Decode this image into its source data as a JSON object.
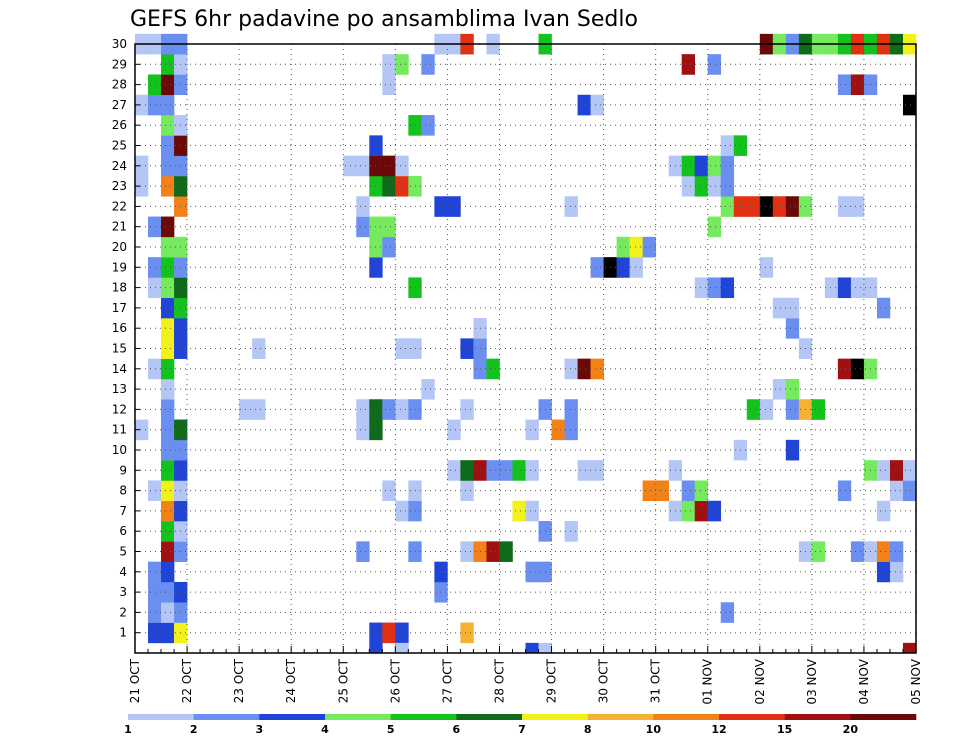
{
  "chart_data": {
    "type": "heatmap",
    "title": "GEFS 6hr padavine po ansamblima Ivan Sedlo",
    "xlabel": "",
    "ylabel": "",
    "x_ticks": [
      "21 OCT",
      "22 OCT",
      "23 OCT",
      "24 OCT",
      "25 OCT",
      "26 OCT",
      "27 OCT",
      "28 OCT",
      "29 OCT",
      "30 OCT",
      "31 OCT",
      "01 NOV",
      "02 NOV",
      "03 NOV",
      "04 NOV",
      "05 NOV"
    ],
    "y_ticks": [
      1,
      2,
      3,
      4,
      5,
      6,
      7,
      8,
      9,
      10,
      11,
      12,
      13,
      14,
      15,
      16,
      17,
      18,
      19,
      20,
      21,
      22,
      23,
      24,
      25,
      26,
      27,
      28,
      29,
      30
    ],
    "x_unit": "6-hour step (4 per day)",
    "ylim": [
      0,
      30
    ],
    "grid": true,
    "colorbar": {
      "labels": [
        "1",
        "2",
        "3",
        "4",
        "5",
        "6",
        "7",
        "8",
        "10",
        "12",
        "15",
        "20"
      ],
      "colors": [
        "#b3c6f5",
        "#6b8ff0",
        "#1f44d6",
        "#75ea5e",
        "#14c21e",
        "#0f6b1a",
        "#f2f21a",
        "#f5b232",
        "#f28218",
        "#e03212",
        "#a01010",
        "#6b0808"
      ]
    },
    "cells": [
      {
        "m": 1,
        "c": [
          [
            1,
            3
          ],
          [
            2,
            3
          ],
          [
            3,
            7
          ],
          [
            18,
            3
          ],
          [
            19,
            10
          ],
          [
            20,
            3
          ],
          [
            25,
            8
          ]
        ]
      },
      {
        "m": 2,
        "c": [
          [
            1,
            2
          ],
          [
            2,
            1
          ],
          [
            3,
            2
          ],
          [
            45,
            2
          ]
        ]
      },
      {
        "m": 3,
        "c": [
          [
            1,
            2
          ],
          [
            2,
            2
          ],
          [
            3,
            3
          ],
          [
            23,
            2
          ]
        ]
      },
      {
        "m": 4,
        "c": [
          [
            1,
            2
          ],
          [
            2,
            3
          ],
          [
            23,
            3
          ],
          [
            30,
            2
          ],
          [
            31,
            2
          ],
          [
            57,
            3
          ],
          [
            58,
            1
          ]
        ]
      },
      {
        "m": 5,
        "c": [
          [
            2,
            11
          ],
          [
            3,
            2
          ],
          [
            17,
            2
          ],
          [
            21,
            2
          ],
          [
            25,
            1
          ],
          [
            26,
            9
          ],
          [
            27,
            11
          ],
          [
            28,
            6
          ],
          [
            51,
            1
          ],
          [
            52,
            4
          ],
          [
            55,
            2
          ],
          [
            56,
            1
          ],
          [
            57,
            9
          ],
          [
            58,
            2
          ]
        ]
      },
      {
        "m": 6,
        "c": [
          [
            2,
            5
          ],
          [
            3,
            1
          ],
          [
            31,
            2
          ],
          [
            33,
            1
          ]
        ]
      },
      {
        "m": 7,
        "c": [
          [
            2,
            9
          ],
          [
            3,
            3
          ],
          [
            20,
            1
          ],
          [
            21,
            2
          ],
          [
            29,
            7
          ],
          [
            30,
            1
          ],
          [
            41,
            1
          ],
          [
            42,
            4
          ],
          [
            43,
            11
          ],
          [
            44,
            3
          ],
          [
            57,
            1
          ]
        ]
      },
      {
        "m": 8,
        "c": [
          [
            1,
            1
          ],
          [
            2,
            7
          ],
          [
            3,
            1
          ],
          [
            19,
            1
          ],
          [
            21,
            1
          ],
          [
            25,
            1
          ],
          [
            39,
            9
          ],
          [
            40,
            9
          ],
          [
            42,
            2
          ],
          [
            43,
            4
          ],
          [
            54,
            2
          ],
          [
            58,
            1
          ],
          [
            59,
            2
          ]
        ]
      },
      {
        "m": 9,
        "c": [
          [
            2,
            5
          ],
          [
            3,
            3
          ],
          [
            24,
            1
          ],
          [
            25,
            6
          ],
          [
            26,
            11
          ],
          [
            27,
            2
          ],
          [
            28,
            2
          ],
          [
            29,
            5
          ],
          [
            30,
            1
          ],
          [
            34,
            1
          ],
          [
            35,
            1
          ],
          [
            41,
            1
          ],
          [
            56,
            4
          ],
          [
            57,
            1
          ],
          [
            58,
            11
          ],
          [
            59,
            1
          ]
        ]
      },
      {
        "m": 10,
        "c": [
          [
            2,
            2
          ],
          [
            3,
            2
          ],
          [
            46,
            1
          ],
          [
            50,
            3
          ]
        ]
      },
      {
        "m": 11,
        "c": [
          [
            0,
            1
          ],
          [
            2,
            2
          ],
          [
            3,
            6
          ],
          [
            17,
            1
          ],
          [
            18,
            6
          ],
          [
            24,
            1
          ],
          [
            30,
            1
          ],
          [
            32,
            9
          ],
          [
            33,
            2
          ]
        ]
      },
      {
        "m": 12,
        "c": [
          [
            2,
            2
          ],
          [
            8,
            1
          ],
          [
            9,
            1
          ],
          [
            17,
            1
          ],
          [
            18,
            6
          ],
          [
            19,
            2
          ],
          [
            20,
            1
          ],
          [
            21,
            2
          ],
          [
            25,
            1
          ],
          [
            31,
            2
          ],
          [
            33,
            2
          ],
          [
            47,
            5
          ],
          [
            48,
            1
          ],
          [
            50,
            2
          ],
          [
            51,
            8
          ],
          [
            52,
            5
          ]
        ]
      },
      {
        "m": 13,
        "c": [
          [
            2,
            1
          ],
          [
            22,
            1
          ],
          [
            49,
            1
          ],
          [
            50,
            4
          ]
        ]
      },
      {
        "m": 14,
        "c": [
          [
            1,
            1
          ],
          [
            2,
            5
          ],
          [
            26,
            2
          ],
          [
            27,
            5
          ],
          [
            33,
            1
          ],
          [
            34,
            12
          ],
          [
            35,
            9
          ],
          [
            54,
            11
          ],
          [
            55,
            13
          ],
          [
            56,
            4
          ]
        ]
      },
      {
        "m": 15,
        "c": [
          [
            2,
            7
          ],
          [
            3,
            3
          ],
          [
            9,
            1
          ],
          [
            20,
            1
          ],
          [
            21,
            1
          ],
          [
            25,
            3
          ],
          [
            26,
            2
          ],
          [
            51,
            1
          ]
        ]
      },
      {
        "m": 16,
        "c": [
          [
            2,
            7
          ],
          [
            3,
            3
          ],
          [
            26,
            1
          ],
          [
            50,
            2
          ]
        ]
      },
      {
        "m": 17,
        "c": [
          [
            2,
            3
          ],
          [
            3,
            5
          ],
          [
            49,
            1
          ],
          [
            50,
            1
          ],
          [
            57,
            2
          ]
        ]
      },
      {
        "m": 18,
        "c": [
          [
            1,
            1
          ],
          [
            2,
            4
          ],
          [
            3,
            6
          ],
          [
            21,
            5
          ],
          [
            43,
            1
          ],
          [
            44,
            2
          ],
          [
            45,
            3
          ],
          [
            53,
            1
          ],
          [
            54,
            3
          ],
          [
            55,
            1
          ],
          [
            56,
            1
          ]
        ]
      },
      {
        "m": 19,
        "c": [
          [
            1,
            2
          ],
          [
            2,
            5
          ],
          [
            3,
            2
          ],
          [
            18,
            3
          ],
          [
            35,
            2
          ],
          [
            36,
            13
          ],
          [
            37,
            3
          ],
          [
            38,
            1
          ],
          [
            48,
            1
          ]
        ]
      },
      {
        "m": 20,
        "c": [
          [
            2,
            4
          ],
          [
            3,
            4
          ],
          [
            18,
            4
          ],
          [
            19,
            2
          ],
          [
            37,
            4
          ],
          [
            38,
            7
          ],
          [
            39,
            2
          ]
        ]
      },
      {
        "m": 21,
        "c": [
          [
            1,
            2
          ],
          [
            2,
            12
          ],
          [
            17,
            2
          ],
          [
            18,
            4
          ],
          [
            19,
            4
          ],
          [
            44,
            4
          ]
        ]
      },
      {
        "m": 22,
        "c": [
          [
            3,
            9
          ],
          [
            17,
            1
          ],
          [
            23,
            3
          ],
          [
            24,
            3
          ],
          [
            33,
            1
          ],
          [
            45,
            4
          ],
          [
            46,
            10
          ],
          [
            47,
            10
          ],
          [
            48,
            13
          ],
          [
            49,
            10
          ],
          [
            50,
            12
          ],
          [
            51,
            4
          ],
          [
            54,
            1
          ],
          [
            55,
            1
          ]
        ]
      },
      {
        "m": 23,
        "c": [
          [
            0,
            1
          ],
          [
            2,
            9
          ],
          [
            3,
            6
          ],
          [
            18,
            5
          ],
          [
            19,
            6
          ],
          [
            20,
            10
          ],
          [
            21,
            4
          ],
          [
            42,
            1
          ],
          [
            43,
            5
          ],
          [
            44,
            1
          ],
          [
            45,
            2
          ]
        ]
      },
      {
        "m": 24,
        "c": [
          [
            0,
            1
          ],
          [
            2,
            2
          ],
          [
            3,
            2
          ],
          [
            16,
            1
          ],
          [
            17,
            1
          ],
          [
            18,
            12
          ],
          [
            19,
            12
          ],
          [
            20,
            1
          ],
          [
            41,
            1
          ],
          [
            42,
            5
          ],
          [
            43,
            3
          ],
          [
            44,
            4
          ],
          [
            45,
            2
          ]
        ]
      },
      {
        "m": 25,
        "c": [
          [
            2,
            2
          ],
          [
            3,
            12
          ],
          [
            18,
            3
          ],
          [
            45,
            1
          ],
          [
            46,
            5
          ]
        ]
      },
      {
        "m": 26,
        "c": [
          [
            2,
            4
          ],
          [
            3,
            1
          ],
          [
            21,
            5
          ],
          [
            22,
            2
          ]
        ]
      },
      {
        "m": 27,
        "c": [
          [
            0,
            1
          ],
          [
            1,
            2
          ],
          [
            2,
            2
          ],
          [
            34,
            3
          ],
          [
            35,
            1
          ],
          [
            59,
            13
          ]
        ]
      },
      {
        "m": 28,
        "c": [
          [
            1,
            5
          ],
          [
            2,
            12
          ],
          [
            3,
            2
          ],
          [
            19,
            1
          ],
          [
            54,
            2
          ],
          [
            55,
            11
          ],
          [
            56,
            2
          ]
        ]
      },
      {
        "m": 29,
        "c": [
          [
            2,
            5
          ],
          [
            3,
            1
          ],
          [
            19,
            1
          ],
          [
            20,
            4
          ],
          [
            22,
            2
          ],
          [
            42,
            11
          ],
          [
            44,
            2
          ]
        ]
      },
      {
        "m": 30,
        "c": [
          [
            0,
            1
          ],
          [
            1,
            1
          ],
          [
            2,
            2
          ],
          [
            3,
            2
          ],
          [
            23,
            1
          ],
          [
            24,
            1
          ],
          [
            25,
            10
          ],
          [
            27,
            1
          ],
          [
            31,
            5
          ],
          [
            48,
            12
          ],
          [
            49,
            4
          ],
          [
            50,
            2
          ],
          [
            51,
            6
          ],
          [
            52,
            4
          ],
          [
            53,
            4
          ],
          [
            54,
            5
          ],
          [
            55,
            10
          ],
          [
            56,
            5
          ],
          [
            57,
            10
          ],
          [
            58,
            6
          ],
          [
            59,
            7
          ]
        ]
      },
      {
        "m": 0,
        "c": [
          [
            18,
            3
          ],
          [
            20,
            1
          ],
          [
            30,
            3
          ],
          [
            31,
            1
          ],
          [
            59,
            11
          ]
        ]
      }
    ]
  }
}
